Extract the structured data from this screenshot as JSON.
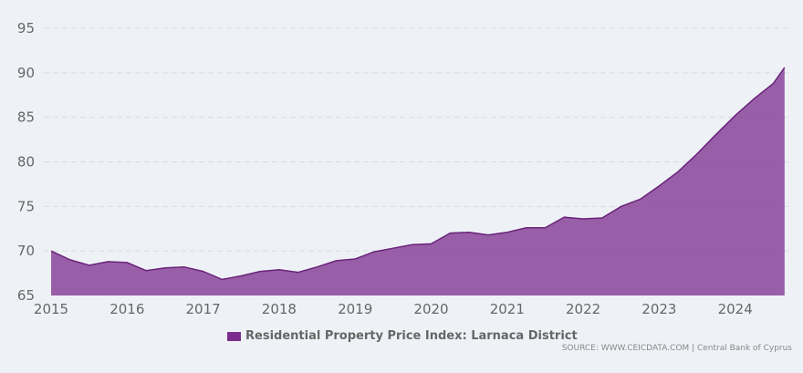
{
  "chart_data": {
    "type": "area",
    "title": "",
    "xlabel": "",
    "ylabel": "",
    "ylim": [
      65,
      95
    ],
    "yticks": [
      65,
      70,
      75,
      80,
      85,
      90,
      95
    ],
    "xticks": [
      "2015",
      "2016",
      "2017",
      "2018",
      "2019",
      "2020",
      "2021",
      "2022",
      "2023",
      "2024"
    ],
    "grid": true,
    "legend_position": "bottom-center",
    "series": [
      {
        "name": "Residential Property Price Index: Larnaca District",
        "color": "#7b2d8e",
        "x": [
          2015.0,
          2015.25,
          2015.5,
          2015.75,
          2016.0,
          2016.25,
          2016.5,
          2016.75,
          2017.0,
          2017.25,
          2017.5,
          2017.75,
          2018.0,
          2018.25,
          2018.5,
          2018.75,
          2019.0,
          2019.25,
          2019.5,
          2019.75,
          2020.0,
          2020.25,
          2020.5,
          2020.75,
          2021.0,
          2021.25,
          2021.5,
          2021.75,
          2022.0,
          2022.25,
          2022.5,
          2022.75,
          2023.0,
          2023.25,
          2023.5,
          2023.75,
          2024.0,
          2024.25,
          2024.5,
          2024.65
        ],
        "values": [
          70.0,
          69.0,
          68.4,
          68.8,
          68.7,
          67.8,
          68.1,
          68.2,
          67.7,
          66.8,
          67.2,
          67.7,
          67.9,
          67.6,
          68.2,
          68.9,
          69.1,
          69.9,
          70.3,
          70.7,
          70.8,
          72.0,
          72.1,
          71.8,
          72.1,
          72.6,
          72.6,
          73.8,
          73.6,
          73.7,
          75.0,
          75.8,
          77.3,
          78.9,
          80.9,
          83.1,
          85.2,
          87.1,
          88.8,
          90.6
        ]
      }
    ]
  },
  "legend": {
    "label": "Residential Property Price Index: Larnaca District"
  },
  "source": "SOURCE: WWW.CEICDATA.COM | Central Bank of Cyprus"
}
